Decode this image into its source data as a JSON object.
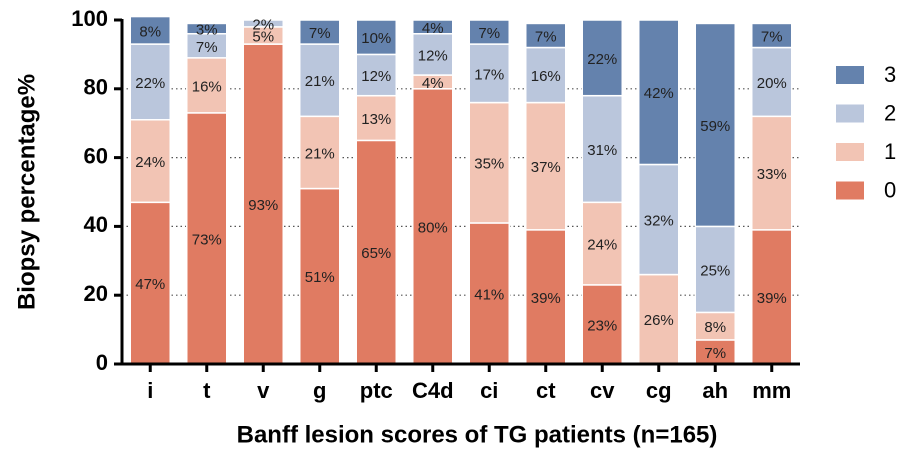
{
  "chart_data": {
    "type": "stacked_bar",
    "categories": [
      "i",
      "t",
      "v",
      "g",
      "ptc",
      "C4d",
      "ci",
      "ct",
      "cv",
      "cg",
      "ah",
      "mm"
    ],
    "series": [
      {
        "name": "0",
        "color": "#e07b62",
        "values": [
          47,
          73,
          93,
          51,
          65,
          80,
          41,
          39,
          23,
          0,
          7,
          39
        ],
        "value_labels": [
          "47%",
          "73%",
          "93%",
          "51%",
          "65%",
          "80%",
          "41%",
          "39%",
          "23%",
          null,
          "7%",
          "39%"
        ]
      },
      {
        "name": "1",
        "color": "#f2c4b4",
        "values": [
          24,
          16,
          5,
          21,
          13,
          4,
          35,
          37,
          24,
          26,
          8,
          33
        ],
        "value_labels": [
          "24%",
          "16%",
          "5%",
          "21%",
          "13%",
          "4%",
          "35%",
          "37%",
          "24%",
          "26%",
          "8%",
          "33%"
        ]
      },
      {
        "name": "2",
        "color": "#bac6dc",
        "values": [
          22,
          7,
          2,
          21,
          12,
          12,
          17,
          16,
          31,
          32,
          25,
          20
        ],
        "value_labels": [
          "22%",
          "7%",
          "2%",
          "21%",
          "12%",
          "12%",
          "17%",
          "16%",
          "31%",
          "32%",
          "25%",
          "20%"
        ]
      },
      {
        "name": "3",
        "color": "#6482ad",
        "values": [
          8,
          3,
          0,
          7,
          10,
          4,
          7,
          7,
          22,
          42,
          59,
          7
        ],
        "value_labels": [
          "8%",
          "3%",
          null,
          "7%",
          "10%",
          "4%",
          "7%",
          "7%",
          "22%",
          "42%",
          "59%",
          "7%"
        ]
      }
    ],
    "xlabel": "Banff lesion scores of TG patients (n=165)",
    "ylabel": "Biopsy percentage%",
    "ylim": [
      0,
      100
    ],
    "yticks": [
      0,
      20,
      40,
      60,
      80,
      100
    ],
    "grid": true,
    "legend": "right"
  }
}
